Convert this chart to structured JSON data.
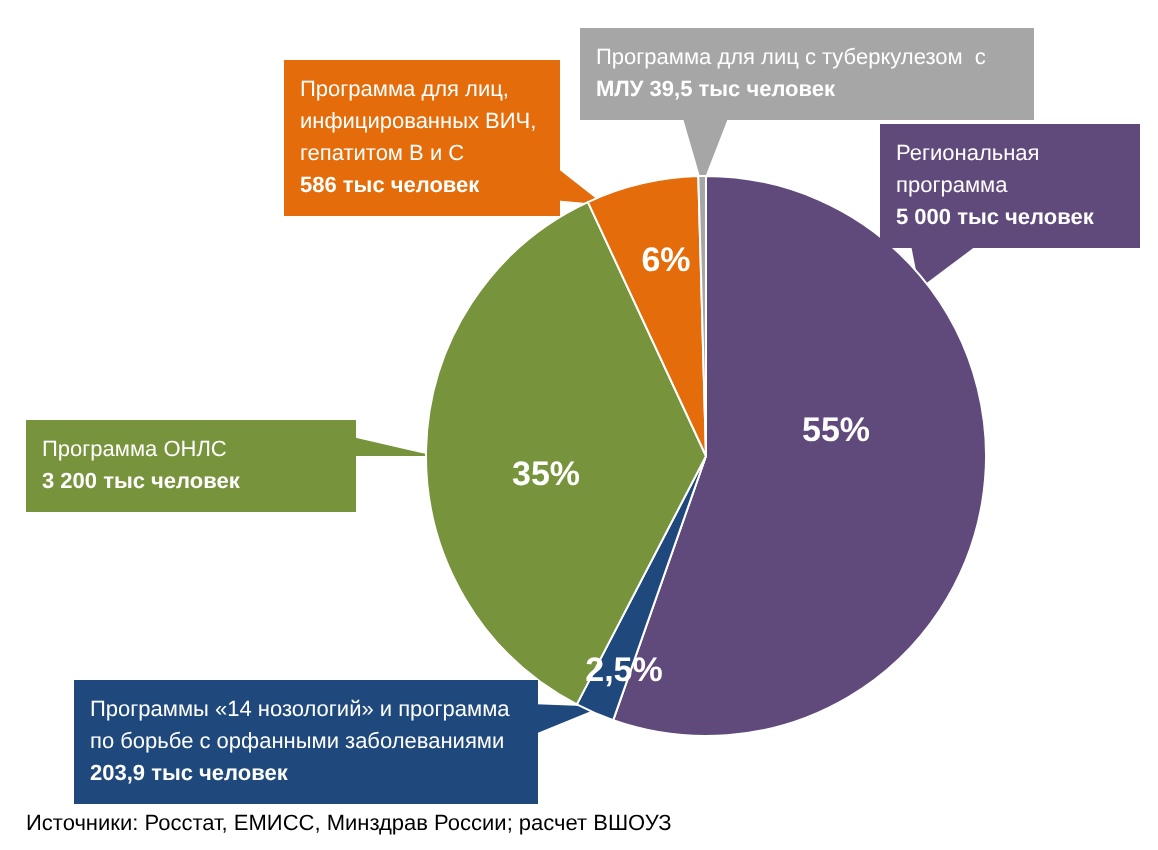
{
  "chart_data": {
    "type": "pie",
    "categories": [
      "Региональная\nпрограмма",
      "Программы «14 нозологий» и программа по борьбе с орфанными заболеваниями",
      "Программа ОНЛС",
      "Программа для лиц,\nинфицированных ВИЧ,\nгепатитом В и С",
      "Программа для лиц с туберкулезом  с\nМЛУ"
    ],
    "values": [
      5000,
      203.9,
      3200,
      586,
      39.5
    ],
    "value_labels": [
      "5 000 тыс человек",
      "203,9 тыс человек",
      "3 200 тыс человек",
      "586 тыс человек",
      "39,5 тыс человек"
    ],
    "colors": [
      "#604a7b",
      "#1f497d",
      "#77933c",
      "#e46c0a",
      "#a6a6a6"
    ],
    "annotations": [
      "6%",
      "55%",
      "35%",
      "2,5%",
      "Источники: Росстат, ЕМИСС, Минздрав России; расчет ВШОУЗ"
    ]
  }
}
